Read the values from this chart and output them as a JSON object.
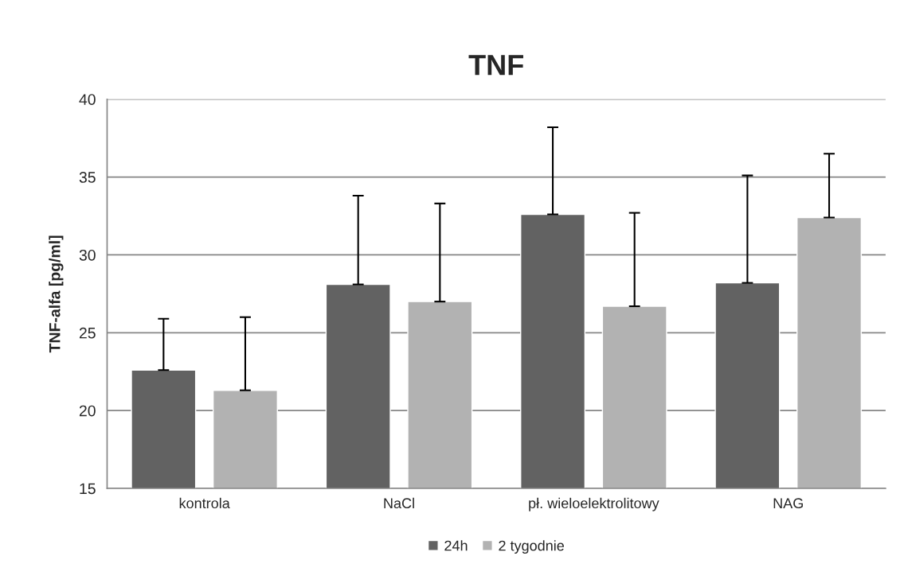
{
  "chart_data": {
    "type": "bar",
    "title": "TNF",
    "ylabel": "TNF-alfa [pg/ml]",
    "categories": [
      "kontrola",
      "NaCl",
      "pł. wieloelektrolitowy",
      "NAG"
    ],
    "series": [
      {
        "name": "24h",
        "color": "#626262",
        "values": [
          22.6,
          28.1,
          32.6,
          28.2
        ],
        "errors": [
          [
            22.6,
            25.9
          ],
          [
            28.1,
            33.8
          ],
          [
            32.6,
            38.2
          ],
          [
            28.2,
            35.1
          ]
        ]
      },
      {
        "name": "2 tygodnie",
        "color": "#b2b2b2",
        "values": [
          21.3,
          27.0,
          26.7,
          32.4
        ],
        "errors": [
          [
            21.3,
            26.0
          ],
          [
            27.0,
            33.3
          ],
          [
            26.7,
            32.7
          ],
          [
            32.4,
            36.5
          ]
        ]
      }
    ],
    "ylim": [
      15,
      40
    ],
    "yticks": [
      15,
      20,
      25,
      30,
      35,
      40
    ],
    "grid": "y",
    "legend": "bottom"
  }
}
